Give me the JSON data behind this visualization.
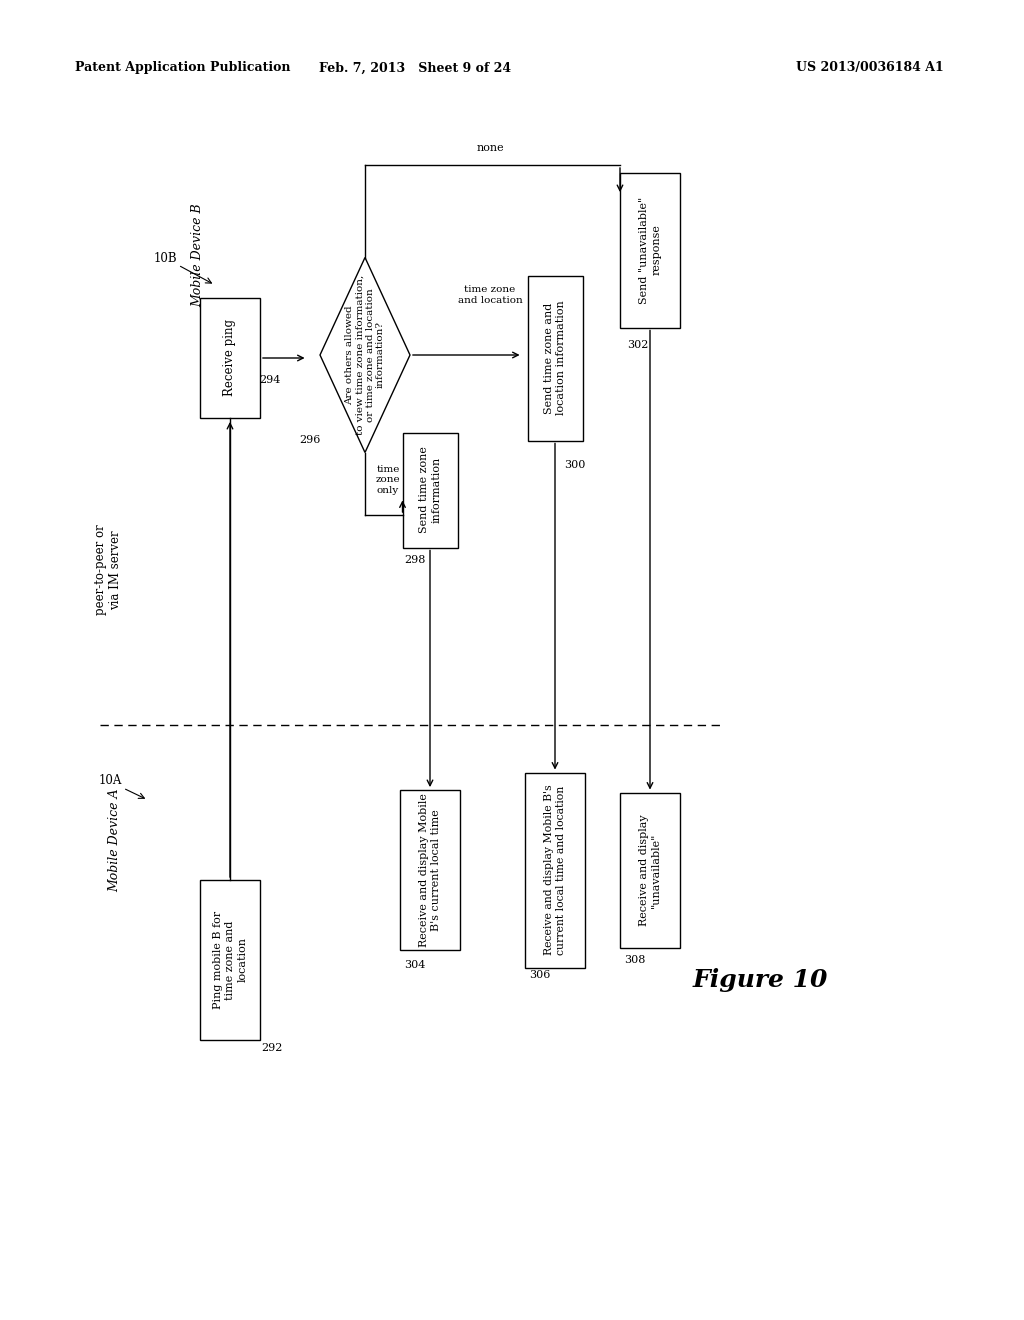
{
  "header_left": "Patent Application Publication",
  "header_mid": "Feb. 7, 2013   Sheet 9 of 24",
  "header_right": "US 2013/0036184 A1",
  "figure_label": "Figure 10",
  "background": "#ffffff"
}
